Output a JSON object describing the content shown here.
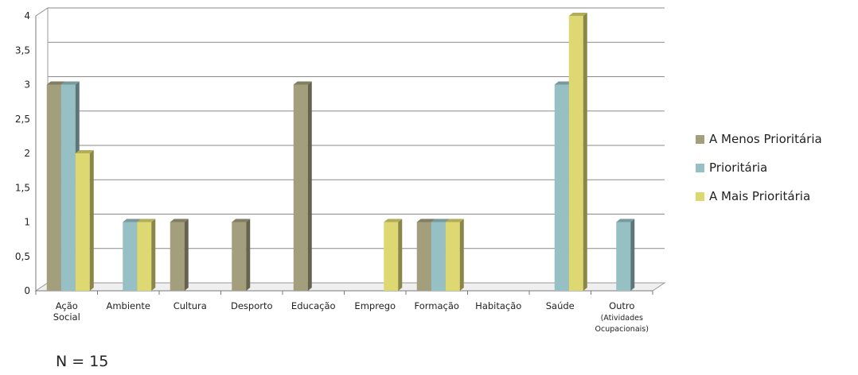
{
  "chart_data": {
    "type": "bar",
    "categories": [
      [
        "Ação",
        "Social"
      ],
      [
        "Ambiente"
      ],
      [
        "Cultura"
      ],
      [
        "Desporto"
      ],
      [
        "Educação"
      ],
      [
        "Emprego"
      ],
      [
        "Formação"
      ],
      [
        "Habitação"
      ],
      [
        "Saúde"
      ],
      [
        "Outro",
        "(Atividades",
        "Ocupacionais)"
      ]
    ],
    "series": [
      {
        "name": "A Menos Prioritária",
        "color": "#a39e7c",
        "values": [
          3,
          0,
          1,
          1,
          3,
          0,
          1,
          0,
          0,
          0
        ]
      },
      {
        "name": "Prioritária",
        "color": "#96c0c3",
        "values": [
          3,
          1,
          0,
          0,
          0,
          0,
          1,
          0,
          3,
          1
        ]
      },
      {
        "name": "A Mais Prioritária",
        "color": "#ddd872",
        "values": [
          2,
          1,
          0,
          0,
          0,
          1,
          1,
          0,
          4,
          0
        ]
      }
    ],
    "yticks": [
      "0",
      "0,5",
      "1",
      "1,5",
      "2",
      "2,5",
      "3",
      "3,5",
      "4"
    ],
    "ylim": [
      0,
      4
    ],
    "grid": true,
    "legend": "right",
    "title": "",
    "xlabel": "",
    "ylabel": ""
  },
  "note": "N = 15"
}
